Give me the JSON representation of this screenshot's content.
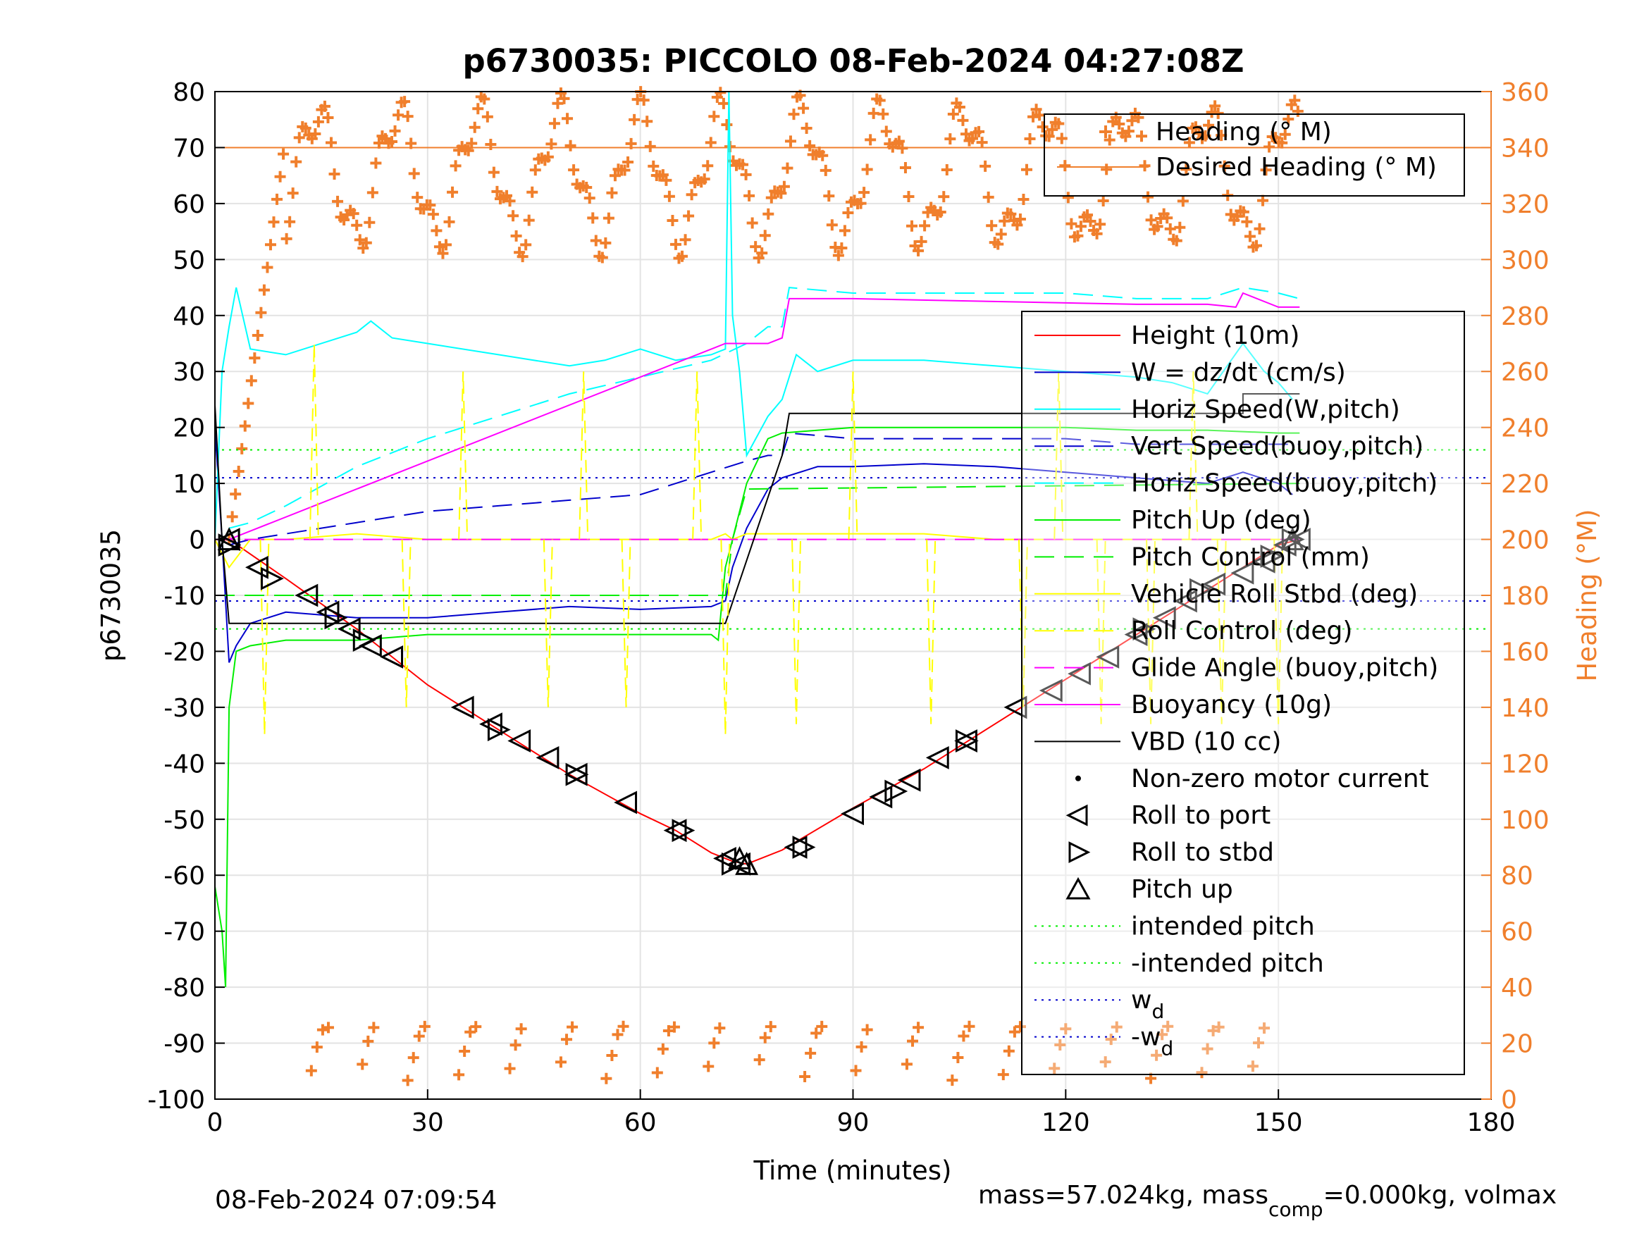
{
  "chart_data": {
    "type": "line",
    "title": "p6730035: PICCOLO 08-Feb-2024 04:27:08Z",
    "xlabel": "Time (minutes)",
    "ylabel_left": "p6730035",
    "ylabel_right": "Heading (°M)",
    "xlim": [
      0,
      180
    ],
    "ylim_left": [
      -100,
      80
    ],
    "ylim_right": [
      0,
      360
    ],
    "xticks": [
      "0",
      "30",
      "60",
      "90",
      "120",
      "150",
      "180"
    ],
    "yticks_left": [
      "80",
      "70",
      "60",
      "50",
      "40",
      "30",
      "20",
      "10",
      "0",
      "-10",
      "-20",
      "-30",
      "-40",
      "-50",
      "-60",
      "-70",
      "-80",
      "-90",
      "-100"
    ],
    "yticks_right": [
      "360",
      "340",
      "320",
      "300",
      "280",
      "260",
      "240",
      "220",
      "200",
      "180",
      "160",
      "140",
      "120",
      "100",
      "80",
      "60",
      "40",
      "20",
      "0"
    ],
    "grid": true,
    "legend_top": {
      "placement": "top-right",
      "entries": [
        {
          "label": "Heading (° M)"
        },
        {
          "label": "Desired Heading (° M)"
        }
      ]
    },
    "legend_main": {
      "placement": "right",
      "entries": [
        {
          "label": "Height (10m)"
        },
        {
          "label": "W = dz/dt (cm/s)"
        },
        {
          "label": "Horiz Speed(W,pitch)"
        },
        {
          "label": "Vert Speed(buoy,pitch)"
        },
        {
          "label": "Horiz Speed(buoy,pitch)"
        },
        {
          "label": "Pitch Up (deg)"
        },
        {
          "label": "Pitch Control (mm)"
        },
        {
          "label": "Vehicle Roll Stbd (deg)"
        },
        {
          "label": "Roll Control (deg)"
        },
        {
          "label": "Glide Angle (buoy,pitch)"
        },
        {
          "label": "Buoyancy (10g)"
        },
        {
          "label": "VBD (10 cc)"
        },
        {
          "label": "Non-zero motor current"
        },
        {
          "label": "Roll to port"
        },
        {
          "label": "Roll to stbd"
        },
        {
          "label": "Pitch up"
        },
        {
          "label": "intended pitch"
        },
        {
          "label": "-intended pitch"
        },
        {
          "label": "w",
          "sub": "d"
        },
        {
          "label": "-w",
          "sub": "d"
        }
      ]
    },
    "colors": {
      "heading": "#f07f2c",
      "desired_heading": "#f07f2c",
      "height": "#ff0000",
      "w": "#0000cc",
      "horiz_speed_w": "#00ffff",
      "vert_speed_buoy": "#0000cc",
      "horiz_speed_buoy": "#00ffff",
      "pitch": "#00ee00",
      "pitch_control": "#00ee00",
      "roll": "#ffff00",
      "roll_control": "#ffff00",
      "glide_angle": "#ff00ff",
      "buoyancy": "#ff00ff",
      "vbd": "#000000",
      "intended_pitch": "#00ee00",
      "wd": "#0000cc"
    },
    "series": [
      {
        "key": "height",
        "x": [
          0,
          2,
          10,
          20,
          30,
          40,
          50,
          60,
          65,
          70,
          73,
          75,
          77,
          80,
          90,
          100,
          110,
          120,
          130,
          140,
          150,
          153
        ],
        "y": [
          0,
          0,
          -7,
          -16,
          -26,
          -34,
          -42,
          -49,
          -52,
          -56,
          -57.5,
          -58,
          -57,
          -55.5,
          -48,
          -41,
          -33,
          -25,
          -17,
          -9,
          -1,
          0
        ]
      },
      {
        "key": "w",
        "x": [
          0,
          1,
          2,
          3,
          5,
          10,
          20,
          30,
          40,
          50,
          60,
          70,
          72,
          73,
          75,
          78,
          80,
          85,
          90,
          100,
          110,
          120,
          130,
          140,
          145,
          150,
          152
        ],
        "y": [
          20,
          0,
          -22,
          -19,
          -15,
          -13,
          -14,
          -14,
          -13,
          -12,
          -12.5,
          -12,
          -11,
          -5,
          2,
          9,
          11,
          13,
          13,
          13.5,
          13,
          12,
          11,
          10,
          12,
          10,
          8
        ]
      },
      {
        "key": "horiz_speed_w",
        "x": [
          0,
          1,
          2,
          3,
          5,
          10,
          20,
          22,
          25,
          30,
          40,
          50,
          55,
          60,
          65,
          70,
          72,
          72.5,
          73,
          74,
          75,
          78,
          80,
          82,
          85,
          90,
          100,
          110,
          120,
          130,
          135,
          140,
          145,
          148,
          150,
          152
        ],
        "y": [
          0,
          30,
          38,
          45,
          34,
          33,
          37,
          39,
          36,
          35,
          33,
          31,
          32,
          34,
          32,
          33,
          34,
          80,
          40,
          30,
          15,
          22,
          25,
          33,
          30,
          32,
          32,
          31,
          30,
          29,
          28,
          26,
          35,
          30,
          28,
          25
        ]
      },
      {
        "key": "vert_speed_buoy",
        "x": [
          2,
          5,
          10,
          20,
          30,
          40,
          50,
          60,
          70,
          75,
          78,
          80,
          81,
          90,
          100,
          110,
          120,
          130,
          140,
          150,
          153
        ],
        "y": [
          -1,
          0,
          1,
          3,
          5,
          6,
          7,
          8,
          12,
          14,
          15,
          15,
          19,
          18,
          18,
          18,
          18,
          17,
          17,
          17,
          17
        ]
      },
      {
        "key": "horiz_speed_buoy",
        "x": [
          2,
          5,
          10,
          20,
          30,
          40,
          50,
          60,
          70,
          75,
          78,
          80,
          81,
          90,
          100,
          110,
          120,
          130,
          140,
          145,
          150,
          153
        ],
        "y": [
          2,
          3,
          6,
          13,
          18,
          22,
          26,
          29,
          32,
          35,
          38,
          38,
          45,
          44,
          44,
          44,
          44,
          43,
          43,
          45,
          44,
          43
        ]
      },
      {
        "key": "pitch",
        "x": [
          0,
          1,
          1.5,
          2,
          3,
          5,
          10,
          20,
          30,
          40,
          50,
          60,
          70,
          71,
          72,
          73,
          75,
          78,
          80,
          90,
          100,
          110,
          120,
          130,
          140,
          150,
          153
        ],
        "y": [
          -62,
          -70,
          -80,
          -30,
          -20,
          -19,
          -18,
          -18,
          -17,
          -17,
          -17,
          -17,
          -17,
          -18,
          -5,
          0,
          10,
          18,
          19,
          20,
          20,
          20,
          20,
          19.5,
          19.5,
          19,
          19
        ]
      },
      {
        "key": "pitch_control",
        "x": [
          0,
          2,
          5,
          72,
          73,
          75,
          153
        ],
        "y": [
          -10,
          -10,
          -10,
          -10,
          0,
          9,
          10
        ]
      },
      {
        "key": "roll",
        "x": [
          0,
          2,
          5,
          10,
          20,
          30,
          40,
          50,
          60,
          70,
          72,
          73,
          75,
          80,
          90,
          100,
          110,
          120,
          130,
          140,
          150,
          153
        ],
        "y": [
          0,
          -5,
          0,
          0,
          1,
          0,
          0,
          0,
          0,
          0,
          1,
          0,
          1,
          1,
          1,
          1,
          0,
          0,
          0,
          0,
          0,
          0
        ]
      },
      {
        "key": "glide_angle",
        "x": [
          0,
          2,
          5,
          153
        ],
        "y": [
          0,
          0,
          0,
          0
        ]
      },
      {
        "key": "buoyancy",
        "x": [
          0,
          2,
          72,
          78,
          80,
          81,
          90,
          130,
          140,
          144,
          145,
          150,
          153
        ],
        "y": [
          0,
          0,
          35,
          35,
          36,
          43,
          43,
          42,
          42,
          41.5,
          44,
          41.5,
          41.5
        ]
      },
      {
        "key": "vbd",
        "x": [
          0,
          1,
          2,
          72,
          72,
          80,
          81,
          145,
          145,
          153
        ],
        "y": [
          24,
          0,
          -15,
          -15,
          -15,
          15,
          22.5,
          22.5,
          26,
          26
        ]
      }
    ],
    "reference_lines": {
      "intended_pitch": 16,
      "neg_intended_pitch": -16,
      "wd": 11,
      "neg_wd": -11,
      "desired_heading": 340
    },
    "roll_markers_port": [
      [
        2,
        0
      ],
      [
        6,
        -5
      ],
      [
        13,
        -10
      ],
      [
        16,
        -13
      ],
      [
        19,
        -16
      ],
      [
        22,
        -19
      ],
      [
        25,
        -21
      ],
      [
        35,
        -30
      ],
      [
        39,
        -33
      ],
      [
        43,
        -36
      ],
      [
        47,
        -39
      ],
      [
        51,
        -42
      ],
      [
        58,
        -47
      ],
      [
        65,
        -52
      ],
      [
        72,
        -57
      ],
      [
        74,
        -58
      ],
      [
        82,
        -55
      ],
      [
        90,
        -49
      ],
      [
        94,
        -46
      ],
      [
        98,
        -43
      ],
      [
        102,
        -39
      ],
      [
        106,
        -36
      ],
      [
        113,
        -30
      ],
      [
        118,
        -27
      ],
      [
        122,
        -24
      ],
      [
        126,
        -21
      ],
      [
        130,
        -17
      ],
      [
        134,
        -14
      ],
      [
        137,
        -11
      ],
      [
        141,
        -8
      ],
      [
        145,
        -6
      ],
      [
        148,
        -4
      ],
      [
        151,
        -1
      ],
      [
        153,
        0
      ]
    ],
    "roll_markers_stbd": [
      [
        2,
        -1
      ],
      [
        8,
        -7
      ],
      [
        17,
        -14
      ],
      [
        21,
        -18
      ],
      [
        40,
        -34
      ],
      [
        51,
        -42
      ],
      [
        66,
        -52
      ],
      [
        73,
        -58
      ],
      [
        83,
        -55
      ],
      [
        96,
        -45
      ],
      [
        106,
        -36
      ],
      [
        131,
        -16
      ],
      [
        139,
        -9
      ],
      [
        149,
        -3
      ],
      [
        152,
        0
      ]
    ],
    "pitch_markers": [
      [
        2,
        0
      ],
      [
        74,
        -57
      ],
      [
        75,
        -58
      ],
      [
        152,
        0
      ]
    ],
    "footer_left": "08-Feb-2024 07:09:54",
    "footer_right_prefix": "mass=57.024kg, mass",
    "footer_right_sub": "comp",
    "footer_right_suffix": "=0.000kg, volmax"
  }
}
